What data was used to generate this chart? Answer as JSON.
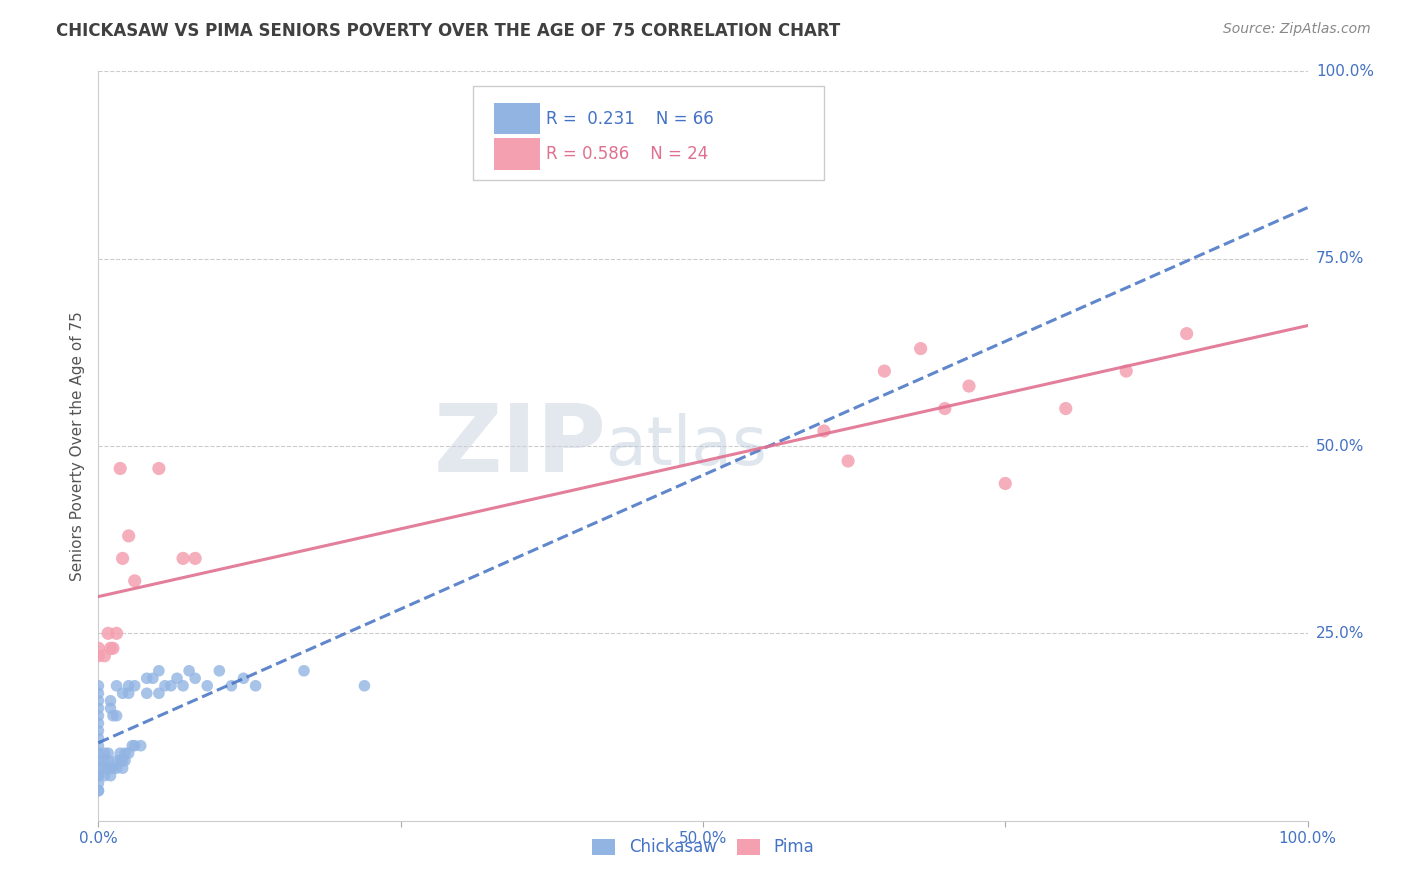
{
  "title": "CHICKASAW VS PIMA SENIORS POVERTY OVER THE AGE OF 75 CORRELATION CHART",
  "source": "Source: ZipAtlas.com",
  "ylabel": "Seniors Poverty Over the Age of 75",
  "watermark_zip": "ZIP",
  "watermark_atlas": "atlas",
  "chickasaw_R": 0.231,
  "chickasaw_N": 66,
  "pima_R": 0.586,
  "pima_N": 24,
  "chickasaw_color": "#92b4e3",
  "pima_color": "#f4a0b0",
  "chickasaw_line_color": "#4472c4",
  "pima_line_color": "#e07090",
  "axis_tick_color": "#4472c4",
  "title_color": "#404040",
  "source_color": "#888888",
  "ylabel_color": "#555555",
  "xlim": [
    0.0,
    1.0
  ],
  "ylim": [
    0.0,
    1.0
  ],
  "xtick_vals": [
    0.0,
    0.25,
    0.5,
    0.75,
    1.0
  ],
  "xticklabels": [
    "0.0%",
    "",
    "50.0%",
    "",
    "100.0%"
  ],
  "ytick_vals": [
    0.0,
    0.25,
    0.5,
    0.75,
    1.0
  ],
  "yticklabels_right": [
    "",
    "25.0%",
    "50.0%",
    "75.0%",
    "100.0%"
  ],
  "grid_color": "#cccccc",
  "spine_color": "#cccccc",
  "legend_box_color": "#ffffff",
  "legend_border_color": "#cccccc",
  "chickasaw_x": [
    0.0,
    0.0,
    0.0,
    0.0,
    0.0,
    0.0,
    0.0,
    0.0,
    0.0,
    0.0,
    0.0,
    0.0,
    0.0,
    0.0,
    0.0,
    0.0,
    0.0,
    0.005,
    0.005,
    0.005,
    0.005,
    0.008,
    0.008,
    0.008,
    0.01,
    0.01,
    0.01,
    0.01,
    0.012,
    0.012,
    0.015,
    0.015,
    0.015,
    0.015,
    0.018,
    0.018,
    0.02,
    0.02,
    0.02,
    0.022,
    0.022,
    0.025,
    0.025,
    0.025,
    0.028,
    0.03,
    0.03,
    0.035,
    0.04,
    0.04,
    0.045,
    0.05,
    0.05,
    0.055,
    0.06,
    0.065,
    0.07,
    0.075,
    0.08,
    0.09,
    0.1,
    0.11,
    0.12,
    0.13,
    0.17,
    0.22
  ],
  "chickasaw_y": [
    0.04,
    0.04,
    0.05,
    0.06,
    0.06,
    0.07,
    0.08,
    0.09,
    0.1,
    0.11,
    0.12,
    0.13,
    0.14,
    0.15,
    0.16,
    0.17,
    0.18,
    0.06,
    0.07,
    0.08,
    0.09,
    0.07,
    0.08,
    0.09,
    0.06,
    0.07,
    0.15,
    0.16,
    0.07,
    0.14,
    0.07,
    0.08,
    0.14,
    0.18,
    0.08,
    0.09,
    0.07,
    0.08,
    0.17,
    0.08,
    0.09,
    0.09,
    0.17,
    0.18,
    0.1,
    0.1,
    0.18,
    0.1,
    0.17,
    0.19,
    0.19,
    0.17,
    0.2,
    0.18,
    0.18,
    0.19,
    0.18,
    0.2,
    0.19,
    0.18,
    0.2,
    0.18,
    0.19,
    0.18,
    0.2,
    0.18
  ],
  "pima_x": [
    0.0,
    0.0,
    0.005,
    0.008,
    0.01,
    0.012,
    0.015,
    0.018,
    0.02,
    0.025,
    0.03,
    0.05,
    0.07,
    0.08,
    0.6,
    0.62,
    0.65,
    0.68,
    0.7,
    0.72,
    0.75,
    0.8,
    0.85,
    0.9
  ],
  "pima_y": [
    0.22,
    0.23,
    0.22,
    0.25,
    0.23,
    0.23,
    0.25,
    0.47,
    0.35,
    0.38,
    0.32,
    0.47,
    0.35,
    0.35,
    0.52,
    0.48,
    0.6,
    0.63,
    0.55,
    0.58,
    0.45,
    0.55,
    0.6,
    0.65
  ]
}
